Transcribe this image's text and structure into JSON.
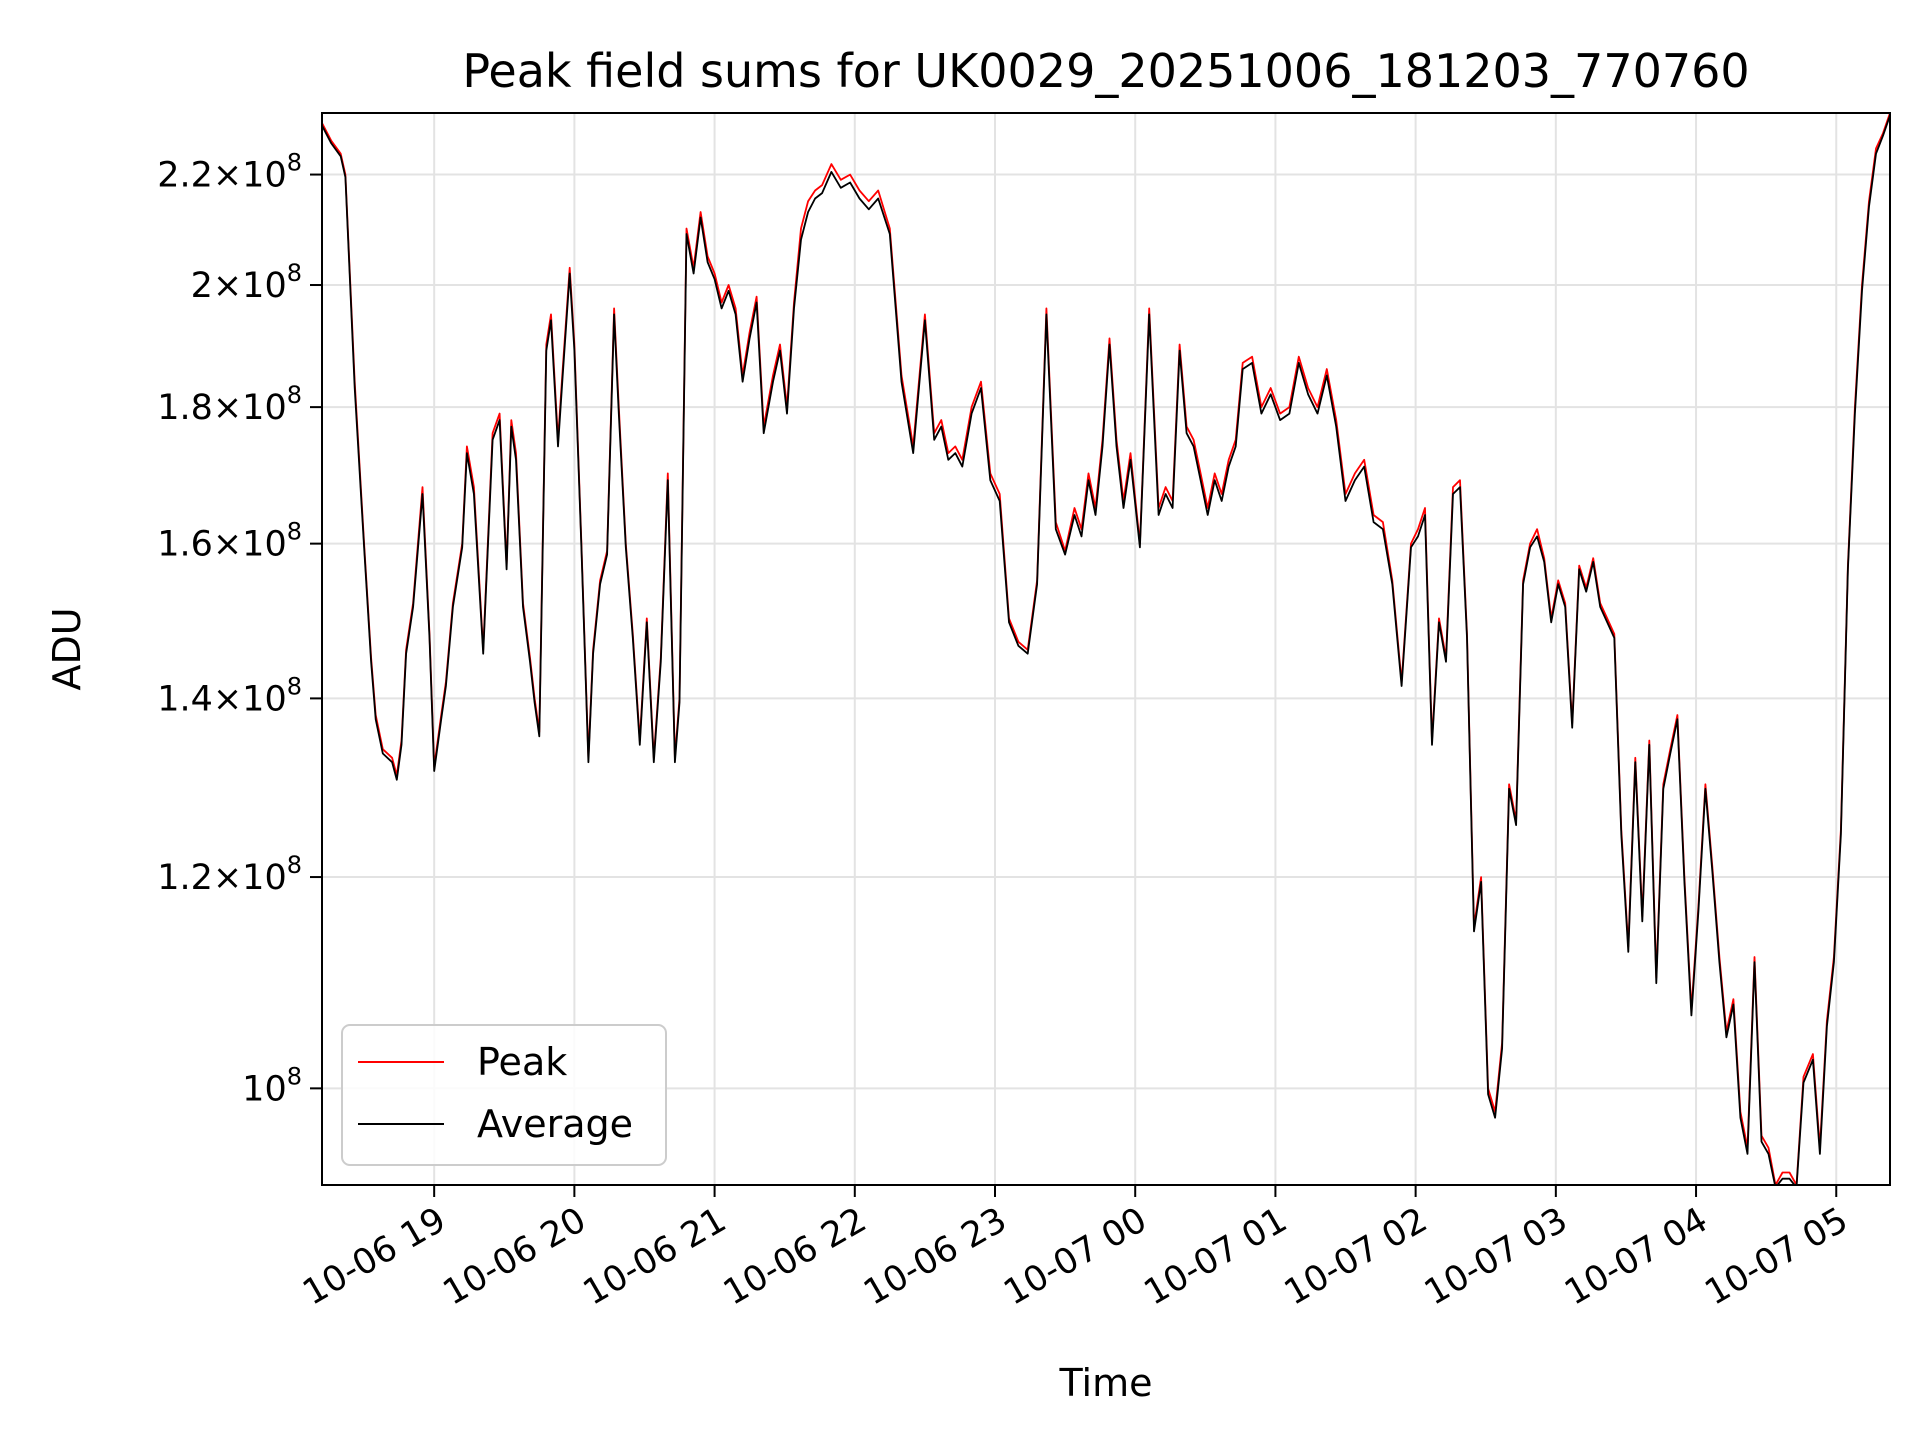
{
  "chart_data": {
    "type": "line",
    "title": "Peak field sums for UK0029_20251006_181203_770760",
    "xlabel": "Time",
    "ylabel": "ADU",
    "y_scale": "log",
    "ylim": [
      92000000,
      232000000
    ],
    "xlim": [
      "2025-10-06 18:12",
      "2025-10-07 05:23"
    ],
    "grid": true,
    "legend_position": "lower-left",
    "x_ticks": [
      {
        "time": "2025-10-06 19:00",
        "label": "10-06 19"
      },
      {
        "time": "2025-10-06 20:00",
        "label": "10-06 20"
      },
      {
        "time": "2025-10-06 21:00",
        "label": "10-06 21"
      },
      {
        "time": "2025-10-06 22:00",
        "label": "10-06 22"
      },
      {
        "time": "2025-10-06 23:00",
        "label": "10-06 23"
      },
      {
        "time": "2025-10-07 00:00",
        "label": "10-07 00"
      },
      {
        "time": "2025-10-07 01:00",
        "label": "10-07 01"
      },
      {
        "time": "2025-10-07 02:00",
        "label": "10-07 02"
      },
      {
        "time": "2025-10-07 03:00",
        "label": "10-07 03"
      },
      {
        "time": "2025-10-07 04:00",
        "label": "10-07 04"
      },
      {
        "time": "2025-10-07 05:00",
        "label": "10-07 05"
      }
    ],
    "y_ticks": [
      {
        "value": 100000000,
        "mantissa": "",
        "exponent": "8"
      },
      {
        "value": 120000000,
        "mantissa": "1.2",
        "exponent": "8"
      },
      {
        "value": 140000000,
        "mantissa": "1.4",
        "exponent": "8"
      },
      {
        "value": 160000000,
        "mantissa": "1.6",
        "exponent": "8"
      },
      {
        "value": 180000000,
        "mantissa": "1.8",
        "exponent": "8"
      },
      {
        "value": 200000000,
        "mantissa": "2",
        "exponent": "8"
      },
      {
        "value": 220000000,
        "mantissa": "2.2",
        "exponent": "8"
      }
    ],
    "x": [
      "2025-10-06 18:12",
      "2025-10-06 18:16",
      "2025-10-06 18:20",
      "2025-10-06 18:22",
      "2025-10-06 18:26",
      "2025-10-06 18:30",
      "2025-10-06 18:33",
      "2025-10-06 18:35",
      "2025-10-06 18:38",
      "2025-10-06 18:42",
      "2025-10-06 18:44",
      "2025-10-06 18:46",
      "2025-10-06 18:48",
      "2025-10-06 18:51",
      "2025-10-06 18:55",
      "2025-10-06 18:58",
      "2025-10-06 19:00",
      "2025-10-06 19:03",
      "2025-10-06 19:05",
      "2025-10-06 19:08",
      "2025-10-06 19:12",
      "2025-10-06 19:14",
      "2025-10-06 19:17",
      "2025-10-06 19:21",
      "2025-10-06 19:25",
      "2025-10-06 19:28",
      "2025-10-06 19:31",
      "2025-10-06 19:33",
      "2025-10-06 19:35",
      "2025-10-06 19:38",
      "2025-10-06 19:41",
      "2025-10-06 19:43",
      "2025-10-06 19:45",
      "2025-10-06 19:48",
      "2025-10-06 19:50",
      "2025-10-06 19:53",
      "2025-10-06 19:55",
      "2025-10-06 19:58",
      "2025-10-06 20:00",
      "2025-10-06 20:03",
      "2025-10-06 20:06",
      "2025-10-06 20:08",
      "2025-10-06 20:11",
      "2025-10-06 20:14",
      "2025-10-06 20:17",
      "2025-10-06 20:19",
      "2025-10-06 20:22",
      "2025-10-06 20:25",
      "2025-10-06 20:28",
      "2025-10-06 20:31",
      "2025-10-06 20:34",
      "2025-10-06 20:37",
      "2025-10-06 20:40",
      "2025-10-06 20:43",
      "2025-10-06 20:45",
      "2025-10-06 20:48",
      "2025-10-06 20:51",
      "2025-10-06 20:54",
      "2025-10-06 20:57",
      "2025-10-06 21:00",
      "2025-10-06 21:03",
      "2025-10-06 21:06",
      "2025-10-06 21:09",
      "2025-10-06 21:12",
      "2025-10-06 21:15",
      "2025-10-06 21:18",
      "2025-10-06 21:21",
      "2025-10-06 21:25",
      "2025-10-06 21:28",
      "2025-10-06 21:31",
      "2025-10-06 21:34",
      "2025-10-06 21:37",
      "2025-10-06 21:40",
      "2025-10-06 21:43",
      "2025-10-06 21:46",
      "2025-10-06 21:50",
      "2025-10-06 21:54",
      "2025-10-06 21:58",
      "2025-10-06 22:02",
      "2025-10-06 22:06",
      "2025-10-06 22:10",
      "2025-10-06 22:15",
      "2025-10-06 22:20",
      "2025-10-06 22:25",
      "2025-10-06 22:30",
      "2025-10-06 22:34",
      "2025-10-06 22:37",
      "2025-10-06 22:40",
      "2025-10-06 22:43",
      "2025-10-06 22:46",
      "2025-10-06 22:50",
      "2025-10-06 22:54",
      "2025-10-06 22:58",
      "2025-10-06 23:02",
      "2025-10-06 23:06",
      "2025-10-06 23:10",
      "2025-10-06 23:14",
      "2025-10-06 23:18",
      "2025-10-06 23:22",
      "2025-10-06 23:26",
      "2025-10-06 23:30",
      "2025-10-06 23:34",
      "2025-10-06 23:37",
      "2025-10-06 23:40",
      "2025-10-06 23:43",
      "2025-10-06 23:46",
      "2025-10-06 23:49",
      "2025-10-06 23:52",
      "2025-10-06 23:55",
      "2025-10-06 23:58",
      "2025-10-07 00:02",
      "2025-10-07 00:06",
      "2025-10-07 00:10",
      "2025-10-07 00:13",
      "2025-10-07 00:16",
      "2025-10-07 00:19",
      "2025-10-07 00:22",
      "2025-10-07 00:25",
      "2025-10-07 00:28",
      "2025-10-07 00:31",
      "2025-10-07 00:34",
      "2025-10-07 00:37",
      "2025-10-07 00:40",
      "2025-10-07 00:43",
      "2025-10-07 00:46",
      "2025-10-07 00:50",
      "2025-10-07 00:54",
      "2025-10-07 00:58",
      "2025-10-07 01:02",
      "2025-10-07 01:06",
      "2025-10-07 01:10",
      "2025-10-07 01:14",
      "2025-10-07 01:18",
      "2025-10-07 01:22",
      "2025-10-07 01:26",
      "2025-10-07 01:30",
      "2025-10-07 01:34",
      "2025-10-07 01:38",
      "2025-10-07 01:42",
      "2025-10-07 01:46",
      "2025-10-07 01:50",
      "2025-10-07 01:54",
      "2025-10-07 01:58",
      "2025-10-07 02:01",
      "2025-10-07 02:04",
      "2025-10-07 02:07",
      "2025-10-07 02:10",
      "2025-10-07 02:13",
      "2025-10-07 02:16",
      "2025-10-07 02:19",
      "2025-10-07 02:22",
      "2025-10-07 02:25",
      "2025-10-07 02:28",
      "2025-10-07 02:31",
      "2025-10-07 02:34",
      "2025-10-07 02:37",
      "2025-10-07 02:40",
      "2025-10-07 02:43",
      "2025-10-07 02:46",
      "2025-10-07 02:49",
      "2025-10-07 02:52",
      "2025-10-07 02:55",
      "2025-10-07 02:58",
      "2025-10-07 03:01",
      "2025-10-07 03:04",
      "2025-10-07 03:07",
      "2025-10-07 03:10",
      "2025-10-07 03:13",
      "2025-10-07 03:16",
      "2025-10-07 03:19",
      "2025-10-07 03:22",
      "2025-10-07 03:25",
      "2025-10-07 03:28",
      "2025-10-07 03:31",
      "2025-10-07 03:34",
      "2025-10-07 03:37",
      "2025-10-07 03:40",
      "2025-10-07 03:43",
      "2025-10-07 03:46",
      "2025-10-07 03:49",
      "2025-10-07 03:52",
      "2025-10-07 03:55",
      "2025-10-07 03:58",
      "2025-10-07 04:01",
      "2025-10-07 04:04",
      "2025-10-07 04:07",
      "2025-10-07 04:10",
      "2025-10-07 04:13",
      "2025-10-07 04:16",
      "2025-10-07 04:19",
      "2025-10-07 04:22",
      "2025-10-07 04:25",
      "2025-10-07 04:28",
      "2025-10-07 04:31",
      "2025-10-07 04:34",
      "2025-10-07 04:37",
      "2025-10-07 04:40",
      "2025-10-07 04:43",
      "2025-10-07 04:46",
      "2025-10-07 04:50",
      "2025-10-07 04:53",
      "2025-10-07 04:56",
      "2025-10-07 04:59",
      "2025-10-07 05:02",
      "2025-10-07 05:05",
      "2025-10-07 05:08",
      "2025-10-07 05:11",
      "2025-10-07 05:14",
      "2025-10-07 05:17",
      "2025-10-07 05:20",
      "2025-10-07 05:23"
    ],
    "series": [
      {
        "name": "Peak",
        "color": "#ff0000",
        "values": [
          230000000,
          226500000,
          224000000,
          220000000,
          184000000,
          160000000,
          145000000,
          138000000,
          134000000,
          133000000,
          131000000,
          135000000,
          146000000,
          152000000,
          168000000,
          148000000,
          132000000,
          138000000,
          142000000,
          152000000,
          160000000,
          174000000,
          168000000,
          146000000,
          176000000,
          179000000,
          157000000,
          178000000,
          173000000,
          152000000,
          145000000,
          140000000,
          136000000,
          190000000,
          195000000,
          175000000,
          186000000,
          203000000,
          190000000,
          160000000,
          133000000,
          146000000,
          155000000,
          159000000,
          196000000,
          180000000,
          160000000,
          148000000,
          135000000,
          150000000,
          133000000,
          145000000,
          170000000,
          133000000,
          140000000,
          210000000,
          203000000,
          213000000,
          205000000,
          202000000,
          197000000,
          200000000,
          196000000,
          185000000,
          192000000,
          198000000,
          177000000,
          185000000,
          190000000,
          180000000,
          197000000,
          210000000,
          215000000,
          217000000,
          218000000,
          222000000,
          219000000,
          220000000,
          217000000,
          215000000,
          217000000,
          210000000,
          185000000,
          174000000,
          195000000,
          176000000,
          178000000,
          173000000,
          174000000,
          172000000,
          180000000,
          184000000,
          170000000,
          167000000,
          150000000,
          147000000,
          146000000,
          155000000,
          196000000,
          163000000,
          159000000,
          165000000,
          162000000,
          170000000,
          165000000,
          175000000,
          191000000,
          175000000,
          166000000,
          173000000,
          160000000,
          196000000,
          165000000,
          168000000,
          166000000,
          190000000,
          177000000,
          175000000,
          170000000,
          165000000,
          170000000,
          167000000,
          172000000,
          175000000,
          187000000,
          188000000,
          180000000,
          183000000,
          179000000,
          180000000,
          188000000,
          183000000,
          180000000,
          186000000,
          178000000,
          167000000,
          170000000,
          172000000,
          164000000,
          163000000,
          155000000,
          142000000,
          160000000,
          162000000,
          165000000,
          135000000,
          150000000,
          145000000,
          168000000,
          169000000,
          148000000,
          115000000,
          120000000,
          100000000,
          98000000,
          104000000,
          130000000,
          126000000,
          155000000,
          160000000,
          162000000,
          158000000,
          150000000,
          155000000,
          152000000,
          137000000,
          157000000,
          154000000,
          158000000,
          152000000,
          150000000,
          148000000,
          125000000,
          113000000,
          133000000,
          116000000,
          135000000,
          110000000,
          130000000,
          134000000,
          138000000,
          120000000,
          107000000,
          117000000,
          130000000,
          121000000,
          112000000,
          105000000,
          108000000,
          98000000,
          95000000,
          112000000,
          96000000,
          95000000,
          92000000,
          93000000,
          93000000,
          92000000,
          101000000,
          103000000,
          95000000,
          106000000,
          112000000,
          125000000,
          157000000,
          180000000,
          200000000,
          215000000,
          225000000,
          228000000,
          232000000
        ]
      },
      {
        "name": "Average",
        "color": "#000000",
        "values": [
          229500000,
          226000000,
          223500000,
          219500000,
          183000000,
          159500000,
          144500000,
          137500000,
          133500000,
          132500000,
          130500000,
          134500000,
          145500000,
          151500000,
          167000000,
          147500000,
          131500000,
          137500000,
          141500000,
          151500000,
          159500000,
          173000000,
          167000000,
          145500000,
          175000000,
          178000000,
          156500000,
          177000000,
          172000000,
          151500000,
          144500000,
          139500000,
          135500000,
          189000000,
          194000000,
          174000000,
          185000000,
          202000000,
          189000000,
          159500000,
          132500000,
          145500000,
          154500000,
          158500000,
          195000000,
          179000000,
          159500000,
          147500000,
          134500000,
          149500000,
          132500000,
          144500000,
          169000000,
          132500000,
          139500000,
          209000000,
          202000000,
          212000000,
          204000000,
          201000000,
          196000000,
          199000000,
          195000000,
          184000000,
          191000000,
          197000000,
          176000000,
          184000000,
          189000000,
          179000000,
          196000000,
          208000000,
          213000000,
          215500000,
          216500000,
          220500000,
          217500000,
          218500000,
          215500000,
          213500000,
          215500000,
          209000000,
          184000000,
          173000000,
          194000000,
          175000000,
          177000000,
          172000000,
          173000000,
          171000000,
          179000000,
          183000000,
          169000000,
          166000000,
          149500000,
          146500000,
          145500000,
          154500000,
          195000000,
          162000000,
          158500000,
          164000000,
          161000000,
          169000000,
          164000000,
          174000000,
          190000000,
          174000000,
          165000000,
          172000000,
          159500000,
          195000000,
          164000000,
          167000000,
          165000000,
          189000000,
          176000000,
          174000000,
          169000000,
          164000000,
          169000000,
          166000000,
          171000000,
          174000000,
          186000000,
          187000000,
          179000000,
          182000000,
          178000000,
          179000000,
          187000000,
          182000000,
          179000000,
          185000000,
          177000000,
          166000000,
          169000000,
          171000000,
          163000000,
          162000000,
          154500000,
          141500000,
          159500000,
          161000000,
          164000000,
          134500000,
          149500000,
          144500000,
          167000000,
          168000000,
          147500000,
          114500000,
          119500000,
          99500000,
          97500000,
          103500000,
          129500000,
          125500000,
          154500000,
          159500000,
          161000000,
          157500000,
          149500000,
          154500000,
          151500000,
          136500000,
          156500000,
          153500000,
          157500000,
          151500000,
          149500000,
          147500000,
          124500000,
          112500000,
          132500000,
          115500000,
          134500000,
          109500000,
          129500000,
          133500000,
          137500000,
          119500000,
          106500000,
          116500000,
          129500000,
          120500000,
          111500000,
          104500000,
          107500000,
          97500000,
          94500000,
          111500000,
          95500000,
          94500000,
          91800000,
          92500000,
          92500000,
          91800000,
          100500000,
          102500000,
          94500000,
          105500000,
          111500000,
          124500000,
          156500000,
          179000000,
          199000000,
          214000000,
          224000000,
          227500000,
          231500000
        ]
      }
    ]
  }
}
